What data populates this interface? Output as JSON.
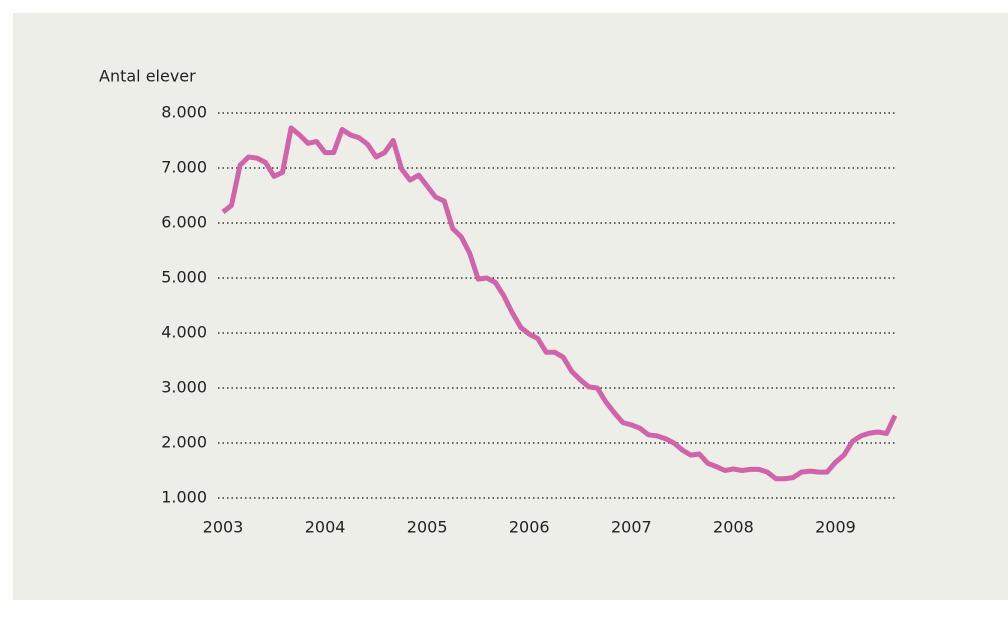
{
  "chart_data": {
    "type": "line",
    "y_label": "Antal elever",
    "x": [
      2003,
      2003.083,
      2003.167,
      2003.25,
      2003.333,
      2003.417,
      2003.5,
      2003.583,
      2003.667,
      2003.75,
      2003.833,
      2003.917,
      2004,
      2004.083,
      2004.167,
      2004.25,
      2004.333,
      2004.417,
      2004.5,
      2004.583,
      2004.667,
      2004.75,
      2004.833,
      2004.917,
      2005,
      2005.083,
      2005.167,
      2005.25,
      2005.333,
      2005.417,
      2005.5,
      2005.583,
      2005.667,
      2005.75,
      2005.833,
      2005.917,
      2006,
      2006.083,
      2006.167,
      2006.25,
      2006.333,
      2006.417,
      2006.5,
      2006.583,
      2006.667,
      2006.75,
      2006.833,
      2006.917,
      2007,
      2007.083,
      2007.167,
      2007.25,
      2007.333,
      2007.417,
      2007.5,
      2007.583,
      2007.667,
      2007.75,
      2007.833,
      2007.917,
      2008,
      2008.083,
      2008.167,
      2008.25,
      2008.333,
      2008.417,
      2008.5,
      2008.583,
      2008.667,
      2008.75,
      2008.833,
      2008.917,
      2009,
      2009.083,
      2009.167,
      2009.25,
      2009.333,
      2009.417,
      2009.5,
      2009.583
    ],
    "series": [
      {
        "name": "Antal elever",
        "color": "#d063a9",
        "values": [
          6200,
          6320,
          7050,
          7200,
          7180,
          7100,
          6850,
          6920,
          7730,
          7600,
          7450,
          7480,
          7280,
          7280,
          7700,
          7600,
          7550,
          7430,
          7200,
          7280,
          7500,
          6980,
          6780,
          6870,
          6670,
          6470,
          6400,
          5900,
          5750,
          5450,
          4980,
          5000,
          4920,
          4680,
          4370,
          4100,
          3980,
          3900,
          3650,
          3650,
          3560,
          3300,
          3150,
          3020,
          3000,
          2750,
          2550,
          2370,
          2330,
          2270,
          2150,
          2130,
          2080,
          2000,
          1870,
          1780,
          1800,
          1630,
          1570,
          1500,
          1530,
          1500,
          1520,
          1520,
          1470,
          1350,
          1350,
          1370,
          1470,
          1490,
          1470,
          1470,
          1650,
          1780,
          2030,
          2130,
          2180,
          2200,
          2170,
          2500
        ]
      }
    ],
    "xlim": [
      2003,
      2009.583
    ],
    "xticks": [
      2003,
      2004,
      2005,
      2006,
      2007,
      2008,
      2009
    ],
    "ylim": [
      1000,
      8000
    ],
    "yticks": [
      {
        "value": 1000,
        "label": "1.000"
      },
      {
        "value": 2000,
        "label": "2.000"
      },
      {
        "value": 3000,
        "label": "3.000"
      },
      {
        "value": 4000,
        "label": "4.000"
      },
      {
        "value": 5000,
        "label": "5.000"
      },
      {
        "value": 6000,
        "label": "6.000"
      },
      {
        "value": 7000,
        "label": "7.000"
      },
      {
        "value": 8000,
        "label": "8.000"
      }
    ],
    "grid": true
  }
}
